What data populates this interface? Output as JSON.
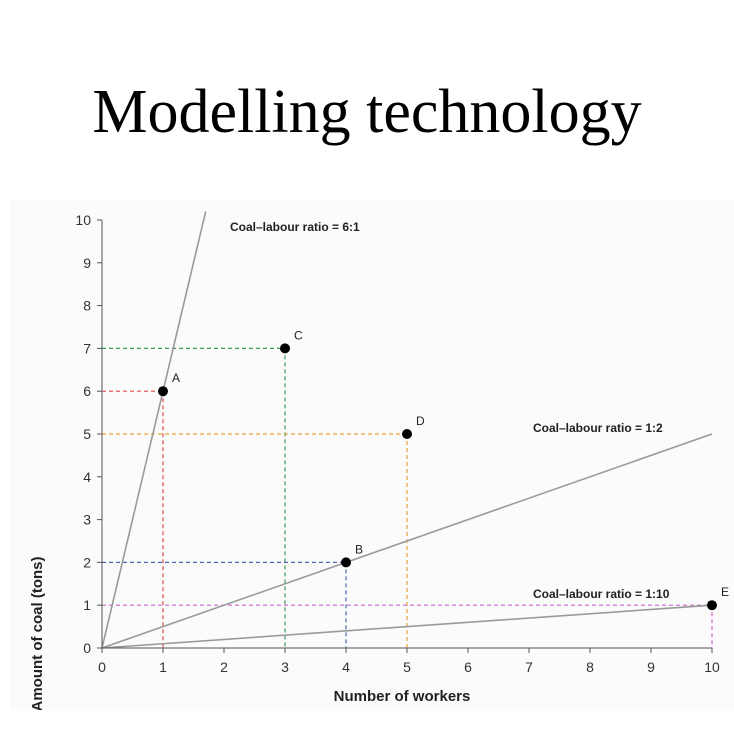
{
  "slide": {
    "title": "Modelling technology"
  },
  "chart_data": {
    "type": "scatter",
    "xlabel": "Number of workers",
    "ylabel": "Amount of coal (tons)",
    "xlim": [
      0,
      10
    ],
    "ylim": [
      0,
      10
    ],
    "xticks": [
      "0",
      "1",
      "2",
      "3",
      "4",
      "5",
      "6",
      "7",
      "8",
      "9",
      "10"
    ],
    "yticks": [
      "0",
      "1",
      "2",
      "3",
      "4",
      "5",
      "6",
      "7",
      "8",
      "9",
      "10"
    ],
    "grid": false,
    "points": [
      {
        "label": "A",
        "x": 1,
        "y": 6,
        "color": "#e34a4a"
      },
      {
        "label": "C",
        "x": 3,
        "y": 7,
        "color": "#3a9a5a"
      },
      {
        "label": "D",
        "x": 5,
        "y": 5,
        "color": "#e8a33a"
      },
      {
        "label": "B",
        "x": 4,
        "y": 2,
        "color": "#4a67b0"
      },
      {
        "label": "E",
        "x": 10,
        "y": 1,
        "color": "#c46ac4"
      }
    ],
    "ratio_lines": [
      {
        "label": "Coal–labour ratio = 6:1",
        "slope": 6,
        "x_end": 1.7
      },
      {
        "label": "Coal–labour ratio = 1:2",
        "slope": 0.5,
        "x_end": 10
      },
      {
        "label": "Coal–labour ratio = 1:10",
        "slope": 0.1,
        "x_end": 10
      }
    ],
    "line_color": "#9a9a9a",
    "point_color": "#000000"
  }
}
